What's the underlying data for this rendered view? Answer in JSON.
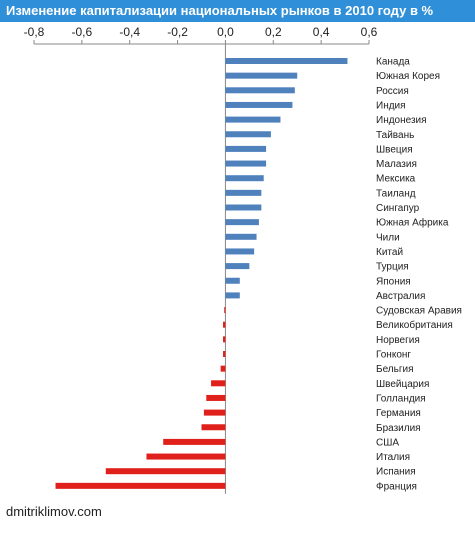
{
  "title": "Изменение капитализации национальных рынков в 2010 году в %",
  "footer": "dmitriklimov.com",
  "colors": {
    "positive": "#4f81bd",
    "negative": "#e0201b",
    "title_bg": "#2f8fd8"
  },
  "chart_data": {
    "type": "bar",
    "orientation": "horizontal",
    "title": "Изменение капитализации национальных рынков в 2010 году в %",
    "xlim": [
      -0.8,
      0.6
    ],
    "x_ticks": [
      "-0,8",
      "-0,6",
      "-0,4",
      "-0,2",
      "0,0",
      "0,2",
      "0,4",
      "0,6"
    ],
    "grid": false,
    "categories": [
      "Канада",
      "Южная Корея",
      "Россия",
      "Индия",
      "Индонезия",
      "Тайвань",
      "Швеция",
      "Малазия",
      "Мексика",
      "Таиланд",
      "Сингапур",
      "Южная Африка",
      "Чили",
      "Китай",
      "Турция",
      "Япония",
      "Австралия",
      "Судовская Аравия",
      "Великобритания",
      "Норвегия",
      "Гонконг",
      "Бельгия",
      "Швейцария",
      "Голландия",
      "Германия",
      "Бразилия",
      "США",
      "Италия",
      "Испания",
      "Франция"
    ],
    "values": [
      0.51,
      0.3,
      0.29,
      0.28,
      0.23,
      0.19,
      0.17,
      0.17,
      0.16,
      0.15,
      0.15,
      0.14,
      0.13,
      0.12,
      0.1,
      0.06,
      0.06,
      -0.005,
      -0.01,
      -0.01,
      -0.01,
      -0.02,
      -0.06,
      -0.08,
      -0.09,
      -0.1,
      -0.26,
      -0.33,
      -0.5,
      -0.71
    ]
  }
}
